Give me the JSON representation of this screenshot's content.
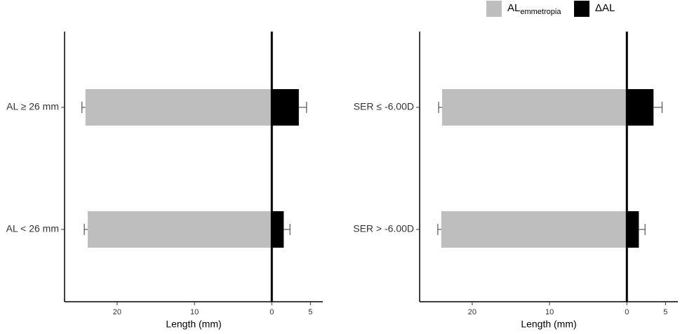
{
  "chart_data": [
    {
      "type": "bar",
      "orientation": "horizontal",
      "categories": [
        "AL ≥ 26 mm",
        "AL < 26 mm"
      ],
      "series": [
        {
          "name": "AL",
          "subscript": "emmetropia",
          "color": "#bebebe",
          "values": [
            -24.1,
            -23.8
          ],
          "errors": [
            0.45,
            0.45
          ]
        },
        {
          "name": "ΔAL",
          "color": "#000000",
          "values": [
            3.5,
            1.55
          ],
          "errors": [
            1.0,
            0.8
          ]
        }
      ],
      "xlabel": "Length (mm)",
      "xlim": [
        -26.8,
        6.6
      ],
      "xticks": [
        {
          "value": -20,
          "label": "20"
        },
        {
          "value": -10,
          "label": "10"
        },
        0,
        5
      ]
    },
    {
      "type": "bar",
      "orientation": "horizontal",
      "categories": [
        "SER ≤ -6.00D",
        "SER > -6.00D"
      ],
      "series": [
        {
          "color": "#bebebe",
          "values": [
            -23.9,
            -24.0
          ],
          "errors": [
            0.45,
            0.45
          ]
        },
        {
          "color": "#000000",
          "values": [
            3.45,
            1.55
          ],
          "errors": [
            1.1,
            0.8
          ]
        }
      ],
      "xlabel": "Length (mm)",
      "xlim": [
        -26.8,
        6.6
      ],
      "xticks": [
        {
          "value": -20,
          "label": "20"
        },
        {
          "value": -10,
          "label": "10"
        },
        0,
        5
      ]
    }
  ]
}
